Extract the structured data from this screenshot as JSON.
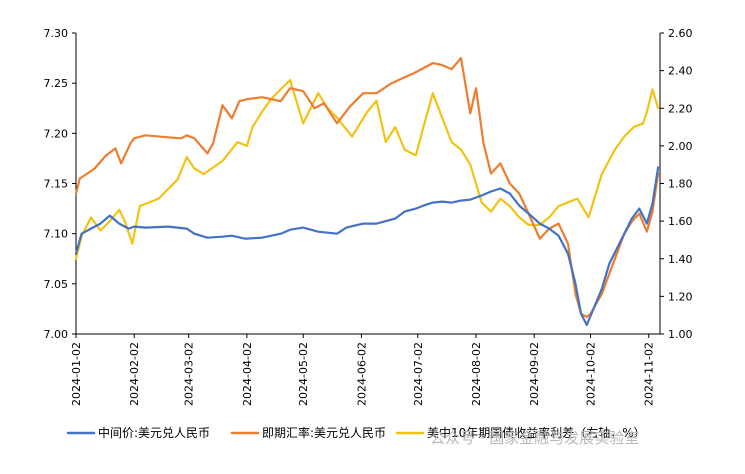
{
  "chart_data": {
    "type": "line",
    "title": "",
    "xlabel": "",
    "ylabel": "",
    "y2label": "",
    "ylim": [
      7.0,
      7.3
    ],
    "y2lim": [
      1.0,
      2.6
    ],
    "yticks": [
      "7.30",
      "7.25",
      "7.20",
      "7.15",
      "7.10",
      "7.05",
      "7.00"
    ],
    "y2ticks": [
      "2.60",
      "2.40",
      "2.20",
      "2.00",
      "1.80",
      "1.60",
      "1.40",
      "1.20",
      "1.00"
    ],
    "x_tick_labels": [
      "2024-01-02",
      "2024-02-02",
      "2024-03-02",
      "2024-04-02",
      "2024-05-02",
      "2024-06-02",
      "2024-07-02",
      "2024-08-02",
      "2024-09-02",
      "2024-10-02",
      "2024-11-02"
    ],
    "x_tick_positions": [
      "2024-01-02",
      "2024-02-02",
      "2024-03-02",
      "2024-04-02",
      "2024-05-02",
      "2024-06-02",
      "2024-07-02",
      "2024-08-02",
      "2024-09-02",
      "2024-10-02",
      "2024-11-02"
    ],
    "xlim": [
      "2024-01-02",
      "2024-11-08"
    ],
    "grid": false,
    "legend_position": "bottom",
    "series": [
      {
        "name": "中间价:美元兑人民币",
        "axis": "left",
        "color": "#4472C4",
        "x": [
          "2024-01-02",
          "2024-01-05",
          "2024-01-10",
          "2024-01-15",
          "2024-01-20",
          "2024-01-25",
          "2024-01-30",
          "2024-02-02",
          "2024-02-08",
          "2024-02-20",
          "2024-03-01",
          "2024-03-05",
          "2024-03-12",
          "2024-03-20",
          "2024-03-25",
          "2024-04-01",
          "2024-04-10",
          "2024-04-20",
          "2024-04-25",
          "2024-05-02",
          "2024-05-10",
          "2024-05-20",
          "2024-05-25",
          "2024-06-03",
          "2024-06-10",
          "2024-06-20",
          "2024-06-25",
          "2024-07-01",
          "2024-07-05",
          "2024-07-10",
          "2024-07-15",
          "2024-07-20",
          "2024-07-25",
          "2024-07-30",
          "2024-08-05",
          "2024-08-10",
          "2024-08-15",
          "2024-08-20",
          "2024-08-25",
          "2024-08-30",
          "2024-09-05",
          "2024-09-10",
          "2024-09-15",
          "2024-09-20",
          "2024-09-24",
          "2024-09-27",
          "2024-09-30",
          "2024-10-02",
          "2024-10-08",
          "2024-10-12",
          "2024-10-16",
          "2024-10-20",
          "2024-10-24",
          "2024-10-28",
          "2024-11-01",
          "2024-11-04",
          "2024-11-07"
        ],
        "values": [
          7.08,
          7.1,
          7.105,
          7.11,
          7.118,
          7.11,
          7.105,
          7.107,
          7.106,
          7.107,
          7.105,
          7.1,
          7.096,
          7.097,
          7.098,
          7.095,
          7.096,
          7.1,
          7.104,
          7.106,
          7.102,
          7.1,
          7.106,
          7.11,
          7.11,
          7.115,
          7.122,
          7.125,
          7.128,
          7.131,
          7.132,
          7.131,
          7.133,
          7.134,
          7.138,
          7.142,
          7.145,
          7.14,
          7.128,
          7.12,
          7.11,
          7.105,
          7.098,
          7.08,
          7.05,
          7.02,
          7.009,
          7.018,
          7.045,
          7.07,
          7.085,
          7.1,
          7.115,
          7.125,
          7.11,
          7.13,
          7.166
        ]
      },
      {
        "name": "即期汇率:美元兑人民币",
        "axis": "left",
        "color": "#ED7D31",
        "x": [
          "2024-01-02",
          "2024-01-04",
          "2024-01-08",
          "2024-01-12",
          "2024-01-18",
          "2024-01-23",
          "2024-01-26",
          "2024-01-31",
          "2024-02-02",
          "2024-02-08",
          "2024-02-20",
          "2024-02-27",
          "2024-03-01",
          "2024-03-05",
          "2024-03-12",
          "2024-03-15",
          "2024-03-20",
          "2024-03-25",
          "2024-03-29",
          "2024-04-02",
          "2024-04-10",
          "2024-04-20",
          "2024-04-25",
          "2024-05-02",
          "2024-05-08",
          "2024-05-13",
          "2024-05-20",
          "2024-05-27",
          "2024-06-03",
          "2024-06-10",
          "2024-06-18",
          "2024-06-24",
          "2024-06-30",
          "2024-07-05",
          "2024-07-10",
          "2024-07-15",
          "2024-07-20",
          "2024-07-25",
          "2024-07-30",
          "2024-08-02",
          "2024-08-06",
          "2024-08-10",
          "2024-08-15",
          "2024-08-20",
          "2024-08-25",
          "2024-08-30",
          "2024-09-05",
          "2024-09-10",
          "2024-09-15",
          "2024-09-20",
          "2024-09-24",
          "2024-09-27",
          "2024-09-30",
          "2024-10-02",
          "2024-10-08",
          "2024-10-12",
          "2024-10-16",
          "2024-10-20",
          "2024-10-24",
          "2024-10-28",
          "2024-11-01",
          "2024-11-04",
          "2024-11-07"
        ],
        "values": [
          7.14,
          7.155,
          7.16,
          7.165,
          7.178,
          7.185,
          7.17,
          7.19,
          7.195,
          7.198,
          7.196,
          7.195,
          7.198,
          7.195,
          7.18,
          7.19,
          7.228,
          7.215,
          7.232,
          7.234,
          7.236,
          7.232,
          7.245,
          7.242,
          7.225,
          7.23,
          7.21,
          7.227,
          7.24,
          7.24,
          7.25,
          7.255,
          7.26,
          7.265,
          7.27,
          7.268,
          7.264,
          7.275,
          7.22,
          7.245,
          7.19,
          7.16,
          7.17,
          7.15,
          7.14,
          7.12,
          7.095,
          7.105,
          7.11,
          7.09,
          7.04,
          7.02,
          7.017,
          7.02,
          7.04,
          7.06,
          7.08,
          7.1,
          7.112,
          7.12,
          7.102,
          7.122,
          7.16
        ]
      },
      {
        "name": "美中10年期国债收益率利差（右轴，%）",
        "axis": "right",
        "color": "#F2C314",
        "x": [
          "2024-01-02",
          "2024-01-05",
          "2024-01-10",
          "2024-01-15",
          "2024-01-20",
          "2024-01-25",
          "2024-01-28",
          "2024-02-01",
          "2024-02-05",
          "2024-02-15",
          "2024-02-25",
          "2024-03-01",
          "2024-03-05",
          "2024-03-10",
          "2024-03-20",
          "2024-03-28",
          "2024-04-02",
          "2024-04-05",
          "2024-04-10",
          "2024-04-15",
          "2024-04-20",
          "2024-04-25",
          "2024-05-02",
          "2024-05-10",
          "2024-05-15",
          "2024-05-20",
          "2024-05-28",
          "2024-06-05",
          "2024-06-10",
          "2024-06-15",
          "2024-06-20",
          "2024-06-25",
          "2024-07-01",
          "2024-07-05",
          "2024-07-10",
          "2024-07-15",
          "2024-07-20",
          "2024-07-25",
          "2024-07-30",
          "2024-08-05",
          "2024-08-10",
          "2024-08-15",
          "2024-08-20",
          "2024-08-25",
          "2024-08-30",
          "2024-09-05",
          "2024-09-10",
          "2024-09-15",
          "2024-09-20",
          "2024-09-25",
          "2024-10-01",
          "2024-10-08",
          "2024-10-15",
          "2024-10-20",
          "2024-10-25",
          "2024-10-30",
          "2024-11-01",
          "2024-11-04",
          "2024-11-07"
        ],
        "values": [
          1.4,
          1.52,
          1.62,
          1.55,
          1.6,
          1.66,
          1.6,
          1.48,
          1.68,
          1.72,
          1.82,
          1.94,
          1.88,
          1.85,
          1.92,
          2.02,
          2.0,
          2.1,
          2.18,
          2.25,
          2.3,
          2.35,
          2.12,
          2.28,
          2.2,
          2.15,
          2.05,
          2.18,
          2.24,
          2.02,
          2.1,
          1.98,
          1.95,
          2.1,
          2.28,
          2.15,
          2.02,
          1.98,
          1.9,
          1.7,
          1.65,
          1.72,
          1.68,
          1.62,
          1.58,
          1.58,
          1.62,
          1.68,
          1.7,
          1.72,
          1.62,
          1.85,
          1.98,
          2.05,
          2.1,
          2.12,
          2.18,
          2.3,
          2.2
        ]
      }
    ]
  },
  "watermark": "公众号 · 国家金融与发展实验室"
}
